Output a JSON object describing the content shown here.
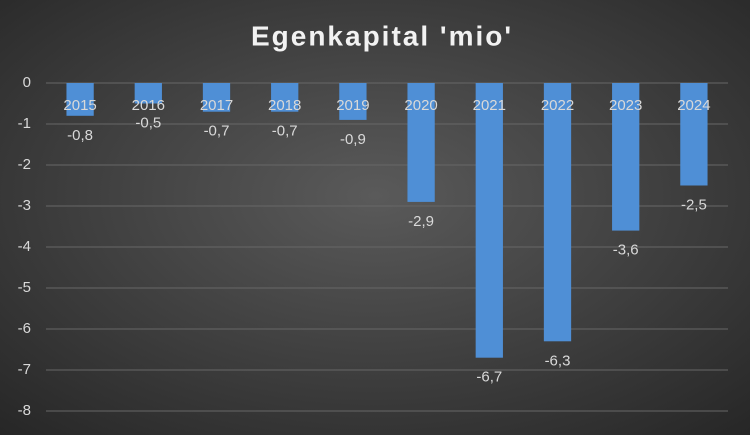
{
  "chart_data": {
    "type": "bar",
    "title": "Egenkapital 'mio'",
    "categories": [
      "2015",
      "2016",
      "2017",
      "2018",
      "2019",
      "2020",
      "2021",
      "2022",
      "2023",
      "2024"
    ],
    "values": [
      -0.8,
      -0.5,
      -0.7,
      -0.7,
      -0.9,
      -2.9,
      -6.7,
      -6.3,
      -3.6,
      -2.5
    ],
    "value_labels": [
      "-0,8",
      "-0,5",
      "-0,7",
      "-0,7",
      "-0,9",
      "-2,9",
      "-6,7",
      "-6,3",
      "-3,6",
      "-2,5"
    ],
    "color": "#4f8fd6",
    "ylim": [
      -8,
      0
    ],
    "yticks": [
      0,
      -1,
      -2,
      -3,
      -4,
      -5,
      -6,
      -7,
      -8
    ],
    "grid": true
  }
}
